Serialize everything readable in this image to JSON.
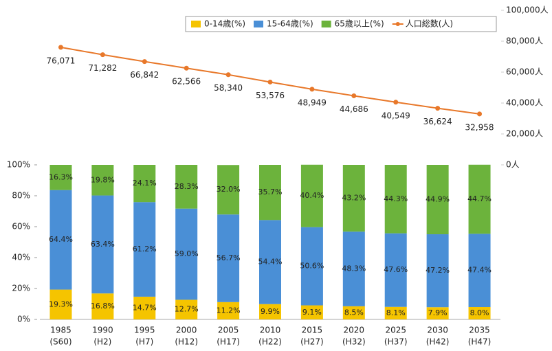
{
  "chart_data": {
    "type": "stacked_bar_line",
    "categories": [
      "1985",
      "1990",
      "1995",
      "2000",
      "2005",
      "2010",
      "2015",
      "2020",
      "2025",
      "2030",
      "2035"
    ],
    "category_sublabels": [
      "(S60)",
      "(H2)",
      "(H7)",
      "(H12)",
      "(H17)",
      "(H22)",
      "(H27)",
      "(H32)",
      "(H37)",
      "(H42)",
      "(H47)"
    ],
    "series": [
      {
        "name": "0-14歳(%)",
        "color": "#f5c400",
        "values": [
          19.3,
          16.8,
          14.7,
          12.7,
          11.2,
          9.9,
          9.1,
          8.5,
          8.1,
          7.9,
          8.0
        ],
        "value_labels": [
          "19.3%",
          "16.8%",
          "14.7%",
          "12.7%",
          "11.2%",
          "9.9%",
          "9.1%",
          "8.5%",
          "8.1%",
          "7.9%",
          "8.0%"
        ]
      },
      {
        "name": "15-64歳(%)",
        "color": "#4a8fd6",
        "values": [
          64.4,
          63.4,
          61.2,
          59.0,
          56.7,
          54.4,
          50.6,
          48.3,
          47.6,
          47.2,
          47.4
        ],
        "value_labels": [
          "64.4%",
          "63.4%",
          "61.2%",
          "59.0%",
          "56.7%",
          "54.4%",
          "50.6%",
          "48.3%",
          "47.6%",
          "47.2%",
          "47.4%"
        ]
      },
      {
        "name": "65歳以上(%)",
        "color": "#6cb33c",
        "values": [
          16.3,
          19.8,
          24.1,
          28.3,
          32.0,
          35.7,
          40.4,
          43.2,
          44.3,
          44.9,
          44.7
        ],
        "value_labels": [
          "16.3%",
          "19.8%",
          "24.1%",
          "28.3%",
          "32.0%",
          "35.7%",
          "40.4%",
          "43.2%",
          "44.3%",
          "44.9%",
          "44.7%"
        ]
      },
      {
        "name": "人口総数(人)",
        "color": "#e8782a",
        "axis": "y2",
        "values": [
          76071,
          71282,
          66842,
          62566,
          58340,
          53576,
          48949,
          44686,
          40549,
          36624,
          32958
        ],
        "value_labels": [
          "76,071",
          "71,282",
          "66,842",
          "62,566",
          "58,340",
          "53,576",
          "48,949",
          "44,686",
          "40,549",
          "36,624",
          "32,958"
        ]
      }
    ],
    "ylim": [
      0,
      100
    ],
    "yticks": [
      {
        "value": 0,
        "label": "0%"
      },
      {
        "value": 20,
        "label": "20%"
      },
      {
        "value": 40,
        "label": "40%"
      },
      {
        "value": 60,
        "label": "60%"
      },
      {
        "value": 80,
        "label": "80%"
      },
      {
        "value": 100,
        "label": "100%"
      }
    ],
    "y2lim": [
      0,
      100000
    ],
    "y2ticks": [
      {
        "value": 0,
        "label": "0人"
      },
      {
        "value": 20000,
        "label": "20,000人"
      },
      {
        "value": 40000,
        "label": "40,000人"
      },
      {
        "value": 60000,
        "label": "60,000人"
      },
      {
        "value": 80000,
        "label": "80,000人"
      },
      {
        "value": 100000,
        "label": "100,000人"
      }
    ],
    "legend": "top-right"
  }
}
